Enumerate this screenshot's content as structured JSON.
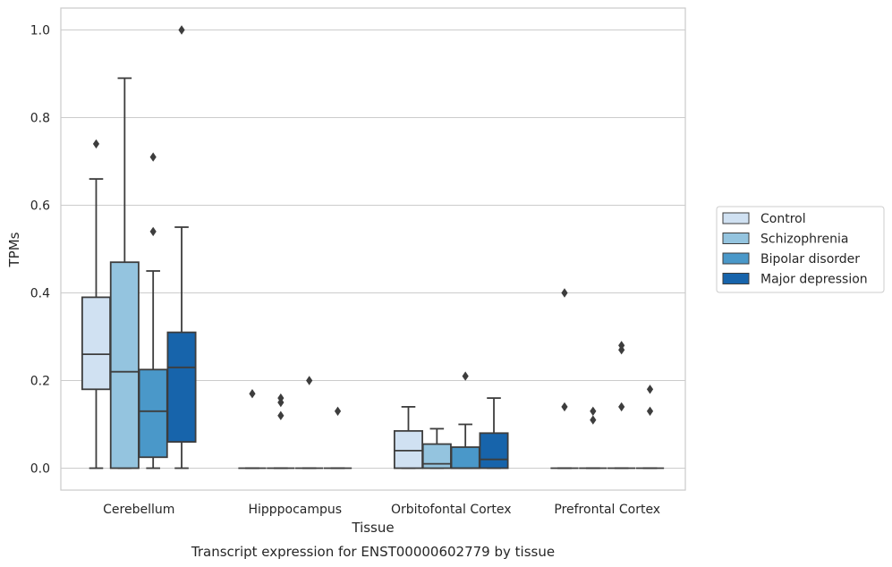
{
  "chart_data": {
    "type": "boxplot",
    "title": "",
    "caption": "Transcript expression for ENST00000602779 by tissue",
    "xlabel": "Tissue",
    "ylabel": "TPMs",
    "ylim": [
      -0.05,
      1.05
    ],
    "yticks": [
      "0.0",
      "0.2",
      "0.4",
      "0.6",
      "0.8",
      "1.0"
    ],
    "grid": "horizontal",
    "legend_position": "right",
    "categories": [
      "Cerebellum",
      "Hipppocampus",
      "Orbitofontal Cortex",
      "Prefrontal Cortex"
    ],
    "series": [
      {
        "name": "Control",
        "color": "#d0e1f2",
        "boxes": [
          {
            "whislo": 0.0,
            "q1": 0.18,
            "med": 0.26,
            "q3": 0.39,
            "whishi": 0.66,
            "fliers": [
              0.74
            ]
          },
          {
            "whislo": 0.0,
            "q1": 0.0,
            "med": 0.0,
            "q3": 0.0,
            "whishi": 0.0,
            "fliers": [
              0.17
            ]
          },
          {
            "whislo": 0.0,
            "q1": 0.0,
            "med": 0.04,
            "q3": 0.085,
            "whishi": 0.14,
            "fliers": []
          },
          {
            "whislo": 0.0,
            "q1": 0.0,
            "med": 0.0,
            "q3": 0.0,
            "whishi": 0.0,
            "fliers": [
              0.4,
              0.14
            ]
          }
        ]
      },
      {
        "name": "Schizophrenia",
        "color": "#94c4df",
        "boxes": [
          {
            "whislo": 0.0,
            "q1": 0.0,
            "med": 0.22,
            "q3": 0.47,
            "whishi": 0.89,
            "fliers": []
          },
          {
            "whislo": 0.0,
            "q1": 0.0,
            "med": 0.0,
            "q3": 0.0,
            "whishi": 0.0,
            "fliers": [
              0.16,
              0.15,
              0.12
            ]
          },
          {
            "whislo": 0.0,
            "q1": 0.0,
            "med": 0.01,
            "q3": 0.055,
            "whishi": 0.09,
            "fliers": []
          },
          {
            "whislo": 0.0,
            "q1": 0.0,
            "med": 0.0,
            "q3": 0.0,
            "whishi": 0.0,
            "fliers": [
              0.13,
              0.11
            ]
          }
        ]
      },
      {
        "name": "Bipolar disorder",
        "color": "#4a98c9",
        "boxes": [
          {
            "whislo": 0.0,
            "q1": 0.025,
            "med": 0.13,
            "q3": 0.225,
            "whishi": 0.45,
            "fliers": [
              0.71,
              0.54
            ]
          },
          {
            "whislo": 0.0,
            "q1": 0.0,
            "med": 0.0,
            "q3": 0.0,
            "whishi": 0.0,
            "fliers": [
              0.2
            ]
          },
          {
            "whislo": 0.0,
            "q1": 0.0,
            "med": 0.0,
            "q3": 0.048,
            "whishi": 0.1,
            "fliers": [
              0.21
            ]
          },
          {
            "whislo": 0.0,
            "q1": 0.0,
            "med": 0.0,
            "q3": 0.0,
            "whishi": 0.0,
            "fliers": [
              0.28,
              0.27,
              0.14
            ]
          }
        ]
      },
      {
        "name": "Major depression",
        "color": "#1764ab",
        "boxes": [
          {
            "whislo": 0.0,
            "q1": 0.06,
            "med": 0.23,
            "q3": 0.31,
            "whishi": 0.55,
            "fliers": [
              1.0
            ]
          },
          {
            "whislo": 0.0,
            "q1": 0.0,
            "med": 0.0,
            "q3": 0.0,
            "whishi": 0.0,
            "fliers": [
              0.13
            ]
          },
          {
            "whislo": 0.0,
            "q1": 0.0,
            "med": 0.02,
            "q3": 0.08,
            "whishi": 0.16,
            "fliers": []
          },
          {
            "whislo": 0.0,
            "q1": 0.0,
            "med": 0.0,
            "q3": 0.0,
            "whishi": 0.0,
            "fliers": [
              0.18,
              0.13
            ]
          }
        ]
      }
    ]
  }
}
